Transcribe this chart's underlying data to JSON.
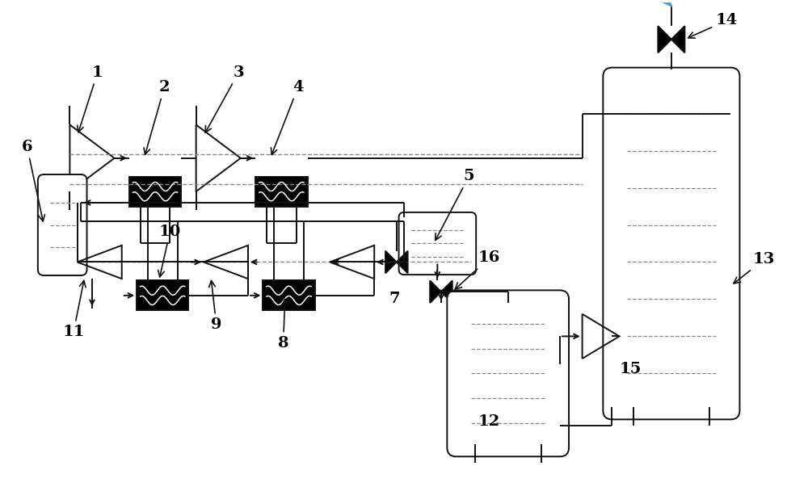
{
  "bg_color": "#ffffff",
  "lc": "#111111",
  "dc": "#888888",
  "figsize": [
    10.0,
    6.03
  ],
  "dpi": 100
}
